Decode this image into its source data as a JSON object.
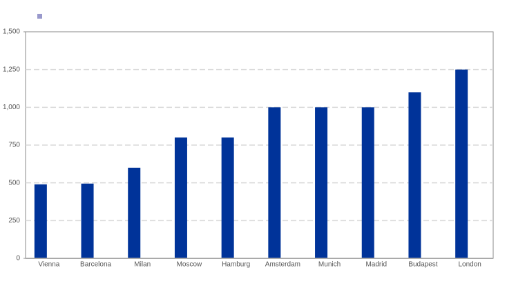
{
  "chart_data": {
    "type": "bar",
    "categories": [
      "Vienna",
      "Barcelona",
      "Milan",
      "Moscow",
      "Hamburg",
      "Amsterdam",
      "Munich",
      "Madrid",
      "Budapest",
      "London"
    ],
    "values": [
      490,
      495,
      600,
      800,
      800,
      1000,
      1000,
      1000,
      1100,
      1250
    ],
    "color": "#003399",
    "ylim": [
      0,
      1500
    ],
    "yticks": [
      0,
      250,
      500,
      750,
      {
        "value": 1000,
        "label": "1,000"
      },
      {
        "value": 1250,
        "label": "1,250"
      },
      {
        "value": 1500,
        "label": "1,500"
      }
    ],
    "grid": true
  }
}
